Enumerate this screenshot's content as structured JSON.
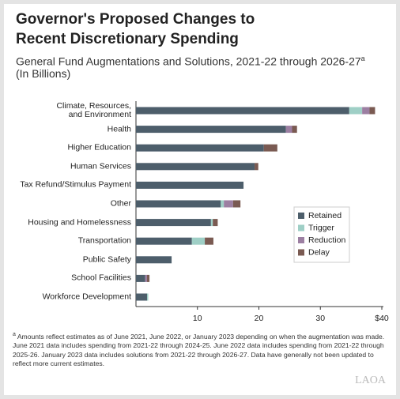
{
  "chart_data": {
    "type": "bar",
    "orientation": "horizontal",
    "stacked": true,
    "title": "Governor's Proposed Changes to\nRecent Discretionary Spending",
    "subtitle": "General Fund Augmentations and Solutions, 2021-22 through 2026-27",
    "subtitle_note_marker": "a",
    "unit_note": "(In Billions)",
    "categories": [
      "Climate, Resources,\nand Environment",
      "Health",
      "Higher Education",
      "Human Services",
      "Tax Refund/Stimulus Payment",
      "Other",
      "Housing and Homelessness",
      "Transportation",
      "Public Safety",
      "School Facilities",
      "Workforce Development"
    ],
    "series": [
      {
        "name": "Retained",
        "color": "#4d5e6b",
        "values": [
          34.7,
          24.4,
          20.8,
          19.3,
          17.5,
          13.8,
          12.2,
          9.1,
          5.8,
          1.5,
          1.8
        ]
      },
      {
        "name": "Trigger",
        "color": "#9fcfc6",
        "values": [
          2.1,
          null,
          null,
          null,
          null,
          0.5,
          0.3,
          2.1,
          null,
          null,
          0.2
        ]
      },
      {
        "name": "Reduction",
        "color": "#9c7fa2",
        "values": [
          1.2,
          1.0,
          null,
          null,
          null,
          1.5,
          null,
          null,
          null,
          0.3,
          null
        ]
      },
      {
        "name": "Delay",
        "color": "#7a5a52",
        "values": [
          0.9,
          0.8,
          2.2,
          0.6,
          null,
          1.2,
          0.8,
          1.4,
          null,
          0.4,
          null
        ]
      }
    ],
    "xlim": [
      0,
      40
    ],
    "xticks": [
      10,
      20,
      30,
      {
        "value": 40,
        "label": "$40"
      }
    ],
    "legend_position": "center right",
    "footnote_marker": "a",
    "footnote": "Amounts reflect estimates as of June 2021, June 2022, or January 2023 depending on when the augmentation was made. June 2021 data includes spending from 2021-22 through 2024-25. June 2022 data includes spending from 2021-22 through 2025-26. January 2023 data includes solutions from 2021-22 through 2026-27. Data have generally not been updated to reflect more current estimates.",
    "logo": "LAOA"
  }
}
